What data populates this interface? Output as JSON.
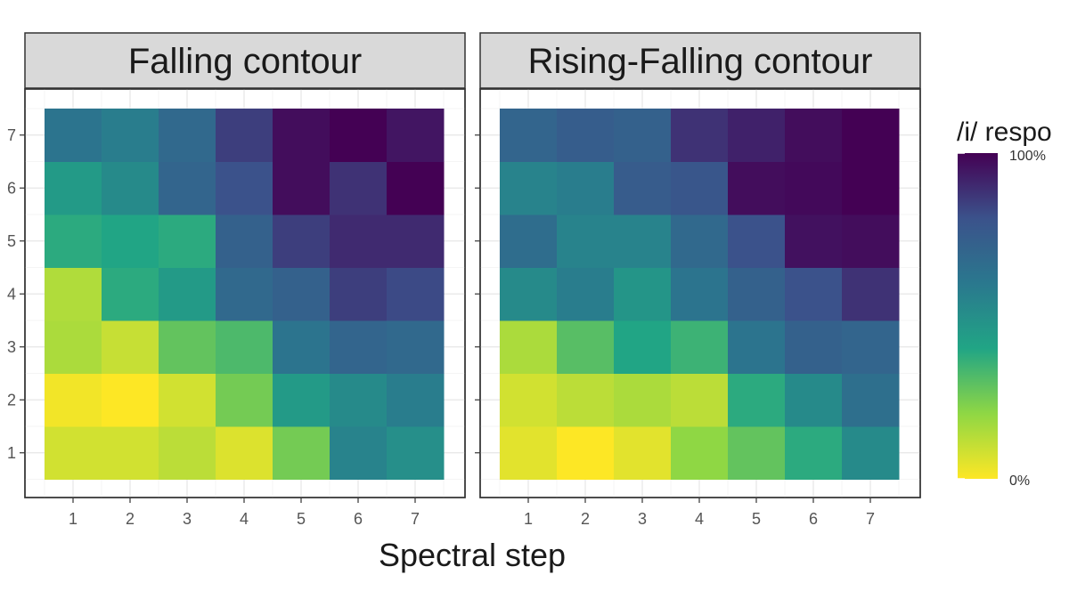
{
  "chart_data": {
    "type": "heatmap",
    "xlabel": "Spectral step",
    "ylabel": "",
    "x": [
      1,
      2,
      3,
      4,
      5,
      6,
      7
    ],
    "y": [
      1,
      2,
      3,
      4,
      5,
      6,
      7
    ],
    "xlim": [
      0.5,
      7.5
    ],
    "ylim": [
      0.5,
      7.5
    ],
    "grid": true,
    "legend": {
      "title": "/i/ respo",
      "position": "right",
      "min_label": "0%",
      "max_label": "100%",
      "min": 0,
      "max": 100,
      "colors": {
        "stop_0": "#fde725",
        "stop_20": "#8fd744",
        "stop_40": "#21a585",
        "stop_60": "#2a788e",
        "stop_80": "#3b528b",
        "stop_100": "#440154"
      }
    },
    "panels": [
      {
        "title": "Falling contour",
        "values": [
          [
            8,
            8,
            12,
            6,
            25,
            55,
            50
          ],
          [
            2,
            0,
            8,
            25,
            45,
            52,
            58
          ],
          [
            15,
            10,
            28,
            32,
            62,
            70,
            68
          ],
          [
            14,
            38,
            45,
            68,
            72,
            85,
            82
          ],
          [
            38,
            40,
            38,
            72,
            85,
            90,
            90
          ],
          [
            45,
            52,
            70,
            80,
            97,
            88,
            100
          ],
          [
            62,
            58,
            68,
            85,
            97,
            100,
            95
          ]
        ]
      },
      {
        "title": "Rising-Falling contour",
        "values": [
          [
            5,
            0,
            5,
            20,
            28,
            38,
            52
          ],
          [
            8,
            12,
            15,
            12,
            38,
            52,
            65
          ],
          [
            15,
            30,
            40,
            35,
            62,
            72,
            70
          ],
          [
            52,
            58,
            47,
            62,
            72,
            80,
            88
          ],
          [
            66,
            55,
            55,
            68,
            80,
            96,
            97
          ],
          [
            55,
            58,
            75,
            78,
            97,
            98,
            100
          ],
          [
            70,
            74,
            72,
            88,
            92,
            97,
            100
          ]
        ]
      }
    ]
  }
}
